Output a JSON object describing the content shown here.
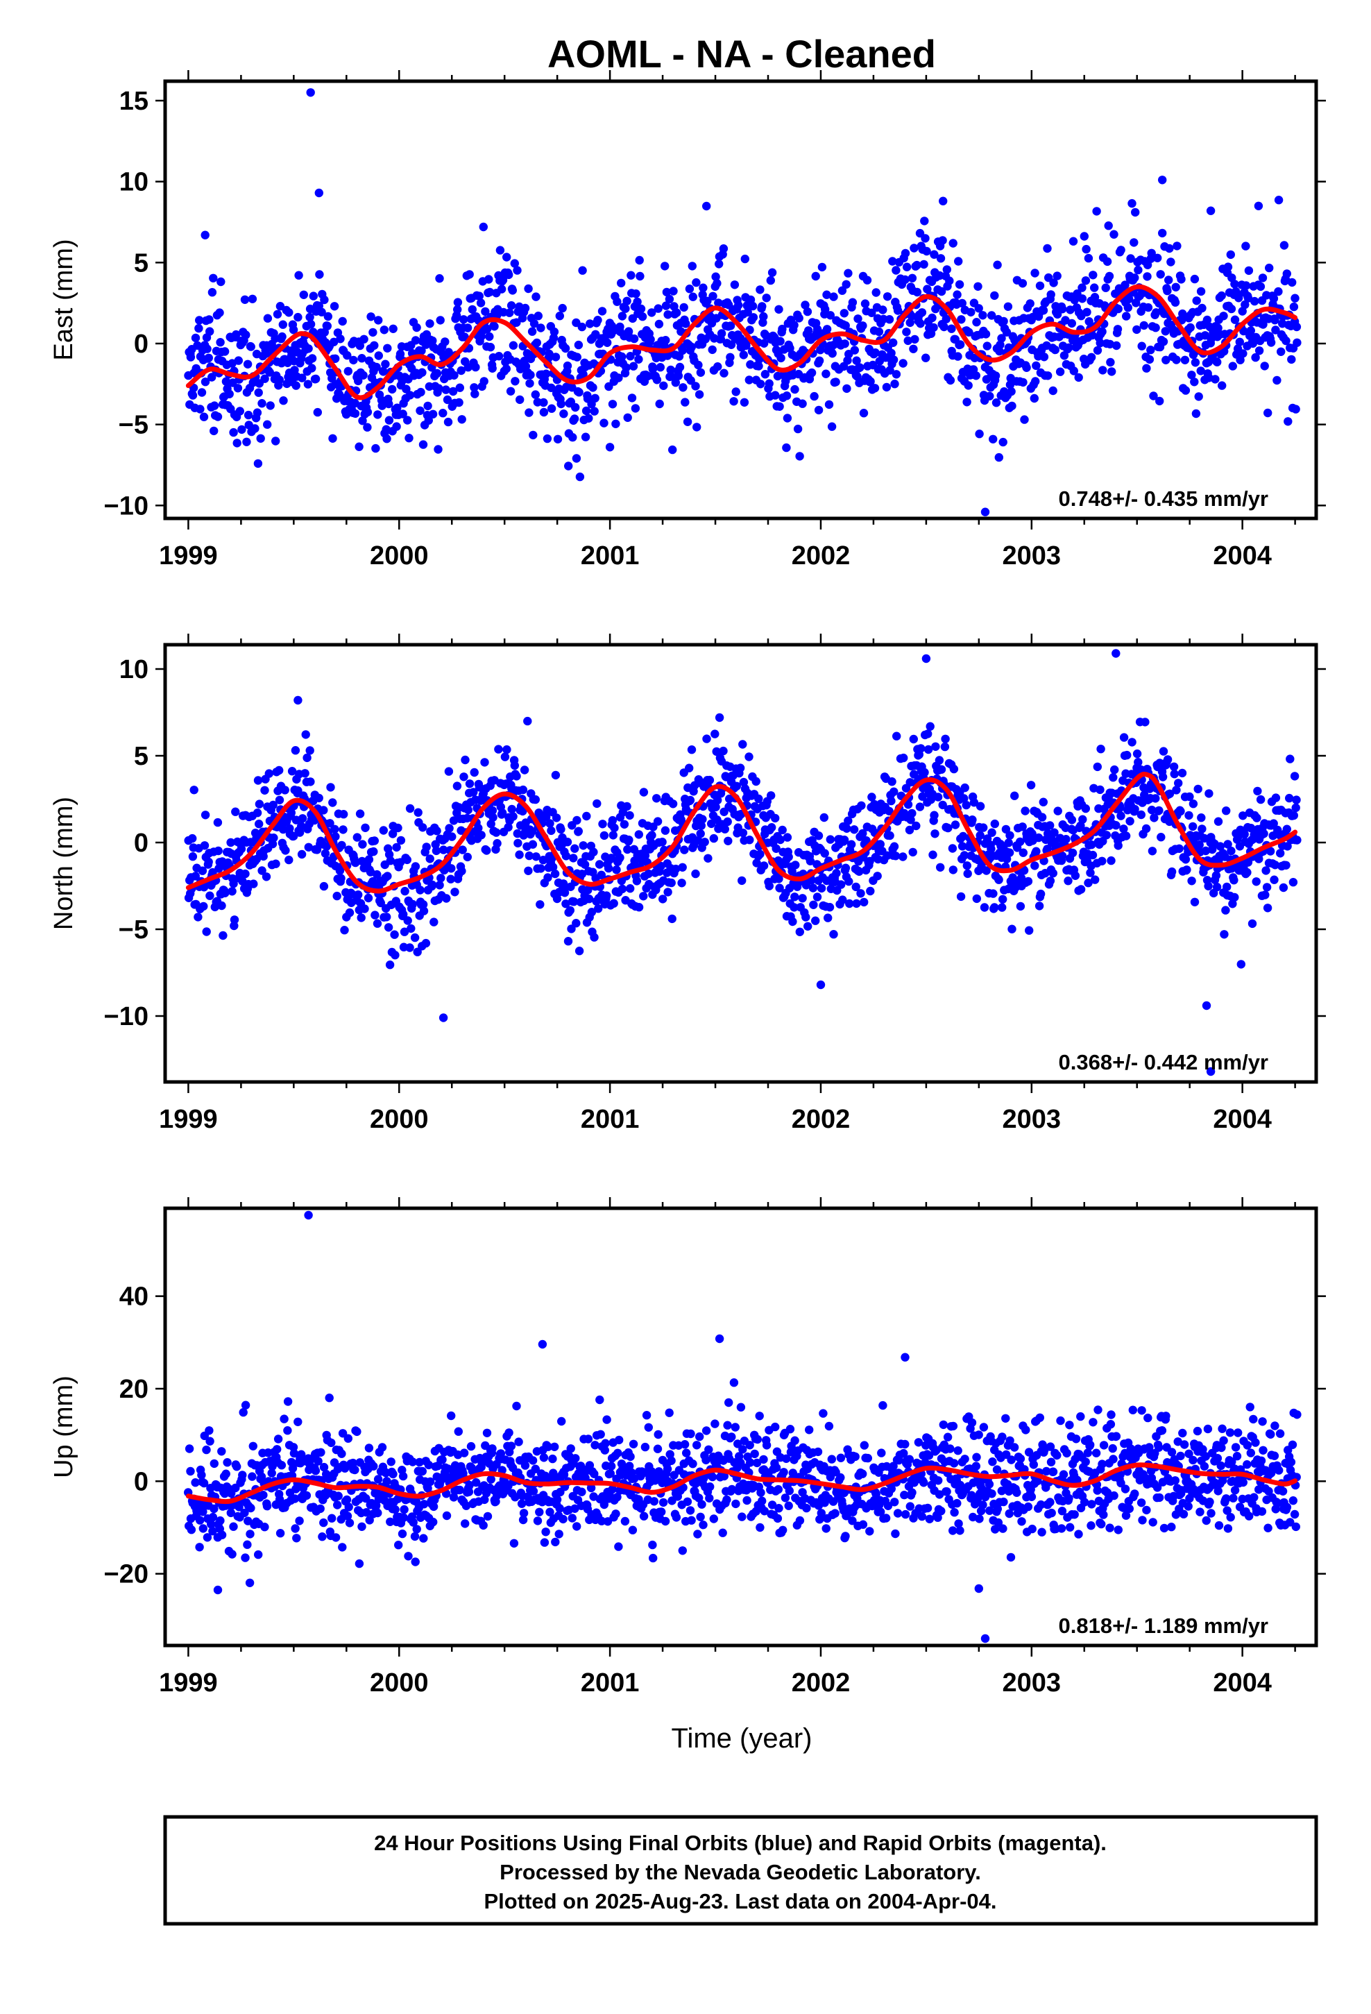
{
  "chart_data": {
    "title": "AOML  - NA - Cleaned",
    "xlabel": "Time (year)",
    "xlim": [
      1998.89,
      2004.35
    ],
    "x_ticks": [
      "1999",
      "2000",
      "2001",
      "2002",
      "2003",
      "2004"
    ],
    "colors": {
      "points": "#0000ff",
      "model": "#ff0000",
      "frame": "#000000"
    },
    "panels": [
      {
        "type": "scatter",
        "ylabel": "East (mm)",
        "ylim": [
          -10.8,
          16.2
        ],
        "y_ticks": [
          -10,
          -5,
          0,
          5,
          10,
          15
        ],
        "rate_label": "0.748+/- 0.435 mm/yr",
        "model": {
          "x": [
            1999.0,
            1999.1,
            1999.2,
            1999.3,
            1999.4,
            1999.5,
            1999.55,
            1999.6,
            1999.7,
            1999.8,
            1999.9,
            2000.0,
            2000.1,
            2000.2,
            2000.3,
            2000.4,
            2000.5,
            2000.6,
            2000.7,
            2000.8,
            2000.9,
            2001.0,
            2001.1,
            2001.2,
            2001.3,
            2001.4,
            2001.5,
            2001.6,
            2001.7,
            2001.8,
            2001.9,
            2002.0,
            2002.1,
            2002.2,
            2002.3,
            2002.4,
            2002.5,
            2002.6,
            2002.7,
            2002.8,
            2002.9,
            2003.0,
            2003.1,
            2003.2,
            2003.3,
            2003.4,
            2003.5,
            2003.6,
            2003.7,
            2003.8,
            2003.9,
            2004.0,
            2004.1,
            2004.2,
            2004.25
          ],
          "y": [
            -2.6,
            -1.6,
            -1.9,
            -2.0,
            -0.8,
            0.4,
            0.6,
            0.2,
            -1.6,
            -3.3,
            -2.7,
            -1.3,
            -0.8,
            -1.3,
            -0.3,
            1.3,
            1.3,
            0.1,
            -1.2,
            -2.3,
            -2.1,
            -0.6,
            -0.2,
            -0.4,
            -0.3,
            1.2,
            2.2,
            1.3,
            -0.3,
            -1.6,
            -1.2,
            0.2,
            0.6,
            0.2,
            0.2,
            1.8,
            2.9,
            2.1,
            0.0,
            -1.0,
            -0.6,
            0.7,
            1.2,
            0.7,
            1.0,
            2.6,
            3.5,
            2.9,
            1.1,
            -0.5,
            -0.2,
            1.2,
            2.1,
            1.9,
            1.6
          ]
        },
        "scatter": {
          "n": 1700,
          "noise_sd": 2.1,
          "extra_offset": 0.5,
          "outliers": [
            [
              1999.08,
              6.7
            ],
            [
              1999.58,
              15.5
            ],
            [
              1999.62,
              9.3
            ],
            [
              2000.4,
              7.2
            ],
            [
              2001.0,
              -6.4
            ],
            [
              2002.58,
              8.8
            ],
            [
              2002.78,
              -10.4
            ],
            [
              2003.62,
              10.1
            ],
            [
              2003.85,
              8.2
            ]
          ]
        }
      },
      {
        "type": "scatter",
        "ylabel": "North (mm)",
        "ylim": [
          -13.8,
          11.4
        ],
        "y_ticks": [
          -10,
          -5,
          0,
          5,
          10
        ],
        "rate_label": "0.368+/- 0.442 mm/yr",
        "model": {
          "x": [
            1999.0,
            1999.1,
            1999.2,
            1999.3,
            1999.4,
            1999.5,
            1999.6,
            1999.7,
            1999.8,
            1999.9,
            2000.0,
            2000.1,
            2000.2,
            2000.3,
            2000.4,
            2000.5,
            2000.6,
            2000.7,
            2000.8,
            2000.9,
            2001.0,
            2001.1,
            2001.2,
            2001.3,
            2001.4,
            2001.5,
            2001.6,
            2001.7,
            2001.8,
            2001.9,
            2002.0,
            2002.1,
            2002.2,
            2002.3,
            2002.4,
            2002.5,
            2002.6,
            2002.7,
            2002.8,
            2002.9,
            2003.0,
            2003.1,
            2003.2,
            2003.3,
            2003.4,
            2003.5,
            2003.55,
            2003.6,
            2003.7,
            2003.8,
            2003.9,
            2004.0,
            2004.1,
            2004.2,
            2004.25
          ],
          "y": [
            -2.6,
            -2.1,
            -1.6,
            -0.6,
            1.0,
            2.4,
            1.8,
            -0.5,
            -2.3,
            -2.8,
            -2.4,
            -2.0,
            -1.3,
            0.2,
            2.0,
            2.8,
            2.1,
            0.2,
            -1.7,
            -2.4,
            -2.1,
            -1.7,
            -1.3,
            -0.2,
            1.8,
            3.2,
            2.6,
            0.4,
            -1.6,
            -2.1,
            -1.5,
            -1.0,
            -0.5,
            0.8,
            2.5,
            3.6,
            3.0,
            0.7,
            -1.3,
            -1.6,
            -1.0,
            -0.6,
            -0.1,
            0.7,
            2.2,
            3.7,
            3.9,
            3.3,
            0.9,
            -1.0,
            -1.3,
            -0.9,
            -0.3,
            0.2,
            0.6
          ]
        },
        "scatter": {
          "n": 1700,
          "noise_sd": 1.6,
          "extra_offset": 0.3,
          "outliers": [
            [
              1999.52,
              8.2
            ],
            [
              2000.21,
              -10.1
            ],
            [
              2001.52,
              7.2
            ],
            [
              2002.5,
              10.6
            ],
            [
              2002.0,
              -8.2
            ],
            [
              2003.4,
              10.9
            ],
            [
              2003.83,
              -9.4
            ],
            [
              2003.85,
              -13.2
            ]
          ]
        }
      },
      {
        "type": "scatter",
        "ylabel": "Up (mm)",
        "ylim": [
          -35.5,
          59
        ],
        "y_ticks": [
          -20,
          0,
          20,
          40
        ],
        "rate_label": "0.818+/- 1.189 mm/yr",
        "model": {
          "x": [
            1999.0,
            1999.1,
            1999.2,
            1999.3,
            1999.4,
            1999.5,
            1999.6,
            1999.7,
            1999.8,
            1999.9,
            2000.0,
            2000.1,
            2000.2,
            2000.3,
            2000.4,
            2000.5,
            2000.6,
            2000.7,
            2000.8,
            2000.9,
            2001.0,
            2001.1,
            2001.2,
            2001.3,
            2001.4,
            2001.5,
            2001.6,
            2001.7,
            2001.8,
            2001.9,
            2002.0,
            2002.1,
            2002.2,
            2002.3,
            2002.4,
            2002.5,
            2002.6,
            2002.7,
            2002.8,
            2002.9,
            2003.0,
            2003.1,
            2003.2,
            2003.3,
            2003.4,
            2003.5,
            2003.6,
            2003.7,
            2003.8,
            2003.9,
            2004.0,
            2004.1,
            2004.2,
            2004.25
          ],
          "y": [
            -3.2,
            -4.0,
            -4.3,
            -2.5,
            -0.6,
            0.3,
            -0.4,
            -1.4,
            -1.1,
            -1.3,
            -2.7,
            -3.2,
            -2.0,
            0.2,
            1.6,
            1.2,
            -0.3,
            -0.6,
            -0.3,
            -0.4,
            -0.5,
            -1.4,
            -2.4,
            -1.2,
            1.2,
            2.4,
            1.6,
            0.5,
            0.3,
            0.1,
            -0.5,
            -1.2,
            -1.8,
            -0.5,
            1.3,
            2.8,
            2.5,
            1.6,
            1.0,
            1.3,
            1.6,
            0.1,
            -0.9,
            0.1,
            2.3,
            3.5,
            3.2,
            2.4,
            1.7,
            1.5,
            1.5,
            0.3,
            -0.6,
            0.1
          ]
        },
        "scatter": {
          "n": 1700,
          "noise_sd": 5.8,
          "extra_offset": 0,
          "outliers": [
            [
              1999.57,
              57.5
            ],
            [
              2000.68,
              29.6
            ],
            [
              2001.52,
              30.8
            ],
            [
              2002.4,
              26.8
            ],
            [
              2002.78,
              -34
            ],
            [
              1999.14,
              -23.5
            ],
            [
              2002.75,
              -23.2
            ]
          ]
        }
      }
    ]
  },
  "footer": {
    "line1": "24 Hour Positions Using Final Orbits (blue) and Rapid Orbits (magenta).",
    "line2": "Processed by the Nevada Geodetic Laboratory.",
    "line3": "Plotted on 2025-Aug-23. Last data on 2004-Apr-04."
  }
}
